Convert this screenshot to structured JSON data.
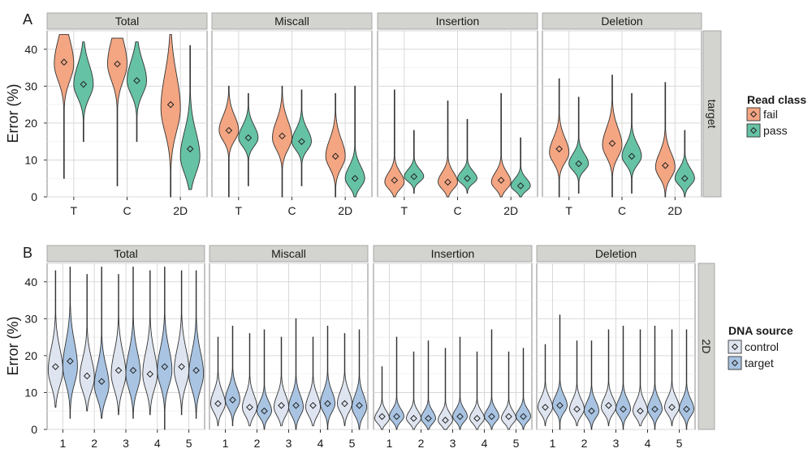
{
  "chart_data": [
    {
      "type": "violin",
      "panel_label": "A",
      "row_strip": "target",
      "facets": [
        "Total",
        "Miscall",
        "Insertion",
        "Deletion"
      ],
      "categories": [
        "T",
        "C",
        "2D"
      ],
      "ylabel": "Error (%)",
      "ylim": [
        0,
        45
      ],
      "yticks": [
        0,
        10,
        20,
        30,
        40
      ],
      "legend_position": "right",
      "legend": {
        "title": "Read class",
        "entries": [
          {
            "name": "fail",
            "color": "#f4a582"
          },
          {
            "name": "pass",
            "color": "#66c2a5"
          }
        ]
      },
      "facet_data": [
        {
          "facet": "Total",
          "series": [
            {
              "name": "fail",
              "means": [
                36.5,
                36,
                25
              ],
              "min": [
                5,
                3,
                0
              ],
              "max": [
                44,
                43,
                44
              ],
              "spread": [
                10,
                10,
                14
              ],
              "center": [
                36,
                36,
                24
              ]
            },
            {
              "name": "pass",
              "means": [
                30.5,
                31.5,
                13
              ],
              "min": [
                15,
                15,
                2
              ],
              "max": [
                42,
                42,
                41
              ],
              "spread": [
                8,
                8,
                10
              ],
              "center": [
                30.5,
                31.5,
                11
              ]
            }
          ]
        },
        {
          "facet": "Miscall",
          "series": [
            {
              "name": "fail",
              "means": [
                18,
                16.5,
                11
              ],
              "min": [
                0,
                0,
                0
              ],
              "max": [
                30,
                30,
                28
              ],
              "spread": [
                6,
                7,
                7
              ],
              "center": [
                18,
                16,
                11
              ]
            },
            {
              "name": "pass",
              "means": [
                16,
                15,
                5
              ],
              "min": [
                3,
                3,
                0
              ],
              "max": [
                28,
                29,
                30
              ],
              "spread": [
                5,
                5,
                5
              ],
              "center": [
                16,
                15,
                5
              ]
            }
          ]
        },
        {
          "facet": "Insertion",
          "series": [
            {
              "name": "fail",
              "means": [
                4.5,
                4,
                4.5
              ],
              "min": [
                0,
                0,
                0
              ],
              "max": [
                29,
                26,
                28
              ],
              "spread": [
                4,
                4,
                4
              ],
              "center": [
                4,
                4,
                4
              ]
            },
            {
              "name": "pass",
              "means": [
                5.5,
                5,
                3
              ],
              "min": [
                1,
                1,
                0
              ],
              "max": [
                18,
                21,
                16
              ],
              "spread": [
                3,
                3,
                3
              ],
              "center": [
                5.5,
                5,
                3
              ]
            }
          ]
        },
        {
          "facet": "Deletion",
          "series": [
            {
              "name": "fail",
              "means": [
                13,
                14.5,
                8.5
              ],
              "min": [
                0,
                0,
                0
              ],
              "max": [
                32,
                33,
                31
              ],
              "spread": [
                6,
                7,
                6
              ],
              "center": [
                12,
                14,
                8
              ]
            },
            {
              "name": "pass",
              "means": [
                9,
                11,
                5
              ],
              "min": [
                1,
                1,
                0
              ],
              "max": [
                27,
                28,
                18
              ],
              "spread": [
                4,
                5,
                4
              ],
              "center": [
                9,
                11,
                5
              ]
            }
          ]
        }
      ]
    },
    {
      "type": "violin",
      "panel_label": "B",
      "row_strip": "2D",
      "facets": [
        "Total",
        "Miscall",
        "Insertion",
        "Deletion"
      ],
      "categories": [
        "1",
        "2",
        "3",
        "4",
        "5"
      ],
      "ylabel": "Error (%)",
      "ylim": [
        0,
        45
      ],
      "yticks": [
        0,
        10,
        20,
        30,
        40
      ],
      "legend_position": "right",
      "legend": {
        "title": "DNA source",
        "entries": [
          {
            "name": "control",
            "color": "#dfe5f0"
          },
          {
            "name": "target",
            "color": "#a9c4e2"
          }
        ]
      },
      "facet_data": [
        {
          "facet": "Total",
          "series": [
            {
              "name": "control",
              "means": [
                17,
                14.5,
                16,
                15,
                17
              ],
              "min": [
                6,
                5,
                4,
                4,
                4
              ],
              "max": [
                43,
                42,
                42,
                43,
                43
              ],
              "spread": [
                9,
                8,
                9,
                9,
                9
              ],
              "center": [
                16,
                14,
                15,
                15,
                16
              ]
            },
            {
              "name": "target",
              "means": [
                18.5,
                13,
                16,
                17,
                16
              ],
              "min": [
                3,
                3,
                3,
                0,
                3
              ],
              "max": [
                44,
                44,
                44,
                44,
                43
              ],
              "spread": [
                10,
                8,
                9,
                9,
                9
              ],
              "center": [
                17,
                12,
                15,
                16,
                15
              ]
            }
          ]
        },
        {
          "facet": "Miscall",
          "series": [
            {
              "name": "control",
              "means": [
                7,
                6,
                6.5,
                6.5,
                7
              ],
              "min": [
                1,
                1,
                1,
                1,
                1
              ],
              "max": [
                25,
                26,
                25,
                25,
                26
              ],
              "spread": [
                5,
                5,
                5,
                5,
                5
              ],
              "center": [
                7,
                6,
                6,
                6,
                7
              ]
            },
            {
              "name": "target",
              "means": [
                8,
                5,
                6.5,
                7,
                6.5
              ],
              "min": [
                1,
                0,
                0,
                0,
                0
              ],
              "max": [
                28,
                27,
                30,
                28,
                27
              ],
              "spread": [
                5,
                4,
                5,
                5,
                5
              ],
              "center": [
                8,
                5,
                6,
                7,
                6
              ]
            }
          ]
        },
        {
          "facet": "Insertion",
          "series": [
            {
              "name": "control",
              "means": [
                3.5,
                3,
                2.5,
                3,
                3.5
              ],
              "min": [
                0,
                0,
                0,
                0,
                0
              ],
              "max": [
                17,
                21,
                22,
                21,
                21
              ],
              "spread": [
                3,
                3,
                3,
                3,
                3
              ],
              "center": [
                3,
                3,
                2.5,
                3,
                3
              ]
            },
            {
              "name": "target",
              "means": [
                3.5,
                3,
                3.5,
                3.5,
                3.5
              ],
              "min": [
                0,
                0,
                0,
                0,
                0
              ],
              "max": [
                25,
                24,
                25,
                27,
                22
              ],
              "spread": [
                3,
                3,
                3,
                3,
                3
              ],
              "center": [
                3.5,
                3,
                3.5,
                3.5,
                3.5
              ]
            }
          ]
        },
        {
          "facet": "Deletion",
          "series": [
            {
              "name": "control",
              "means": [
                6,
                5.5,
                6.5,
                5,
                6
              ],
              "min": [
                1,
                1,
                1,
                1,
                1
              ],
              "max": [
                23,
                24,
                27,
                27,
                27
              ],
              "spread": [
                4,
                4,
                4,
                4,
                4
              ],
              "center": [
                6,
                5.5,
                6,
                5,
                6
              ]
            },
            {
              "name": "target",
              "means": [
                6.5,
                5,
                5.5,
                5.5,
                5.5
              ],
              "min": [
                0,
                0,
                0,
                0,
                0
              ],
              "max": [
                31,
                24,
                28,
                28,
                27
              ],
              "spread": [
                4,
                4,
                4,
                4,
                4
              ],
              "center": [
                6.5,
                5,
                5.5,
                5.5,
                5.5
              ]
            }
          ]
        }
      ]
    }
  ]
}
